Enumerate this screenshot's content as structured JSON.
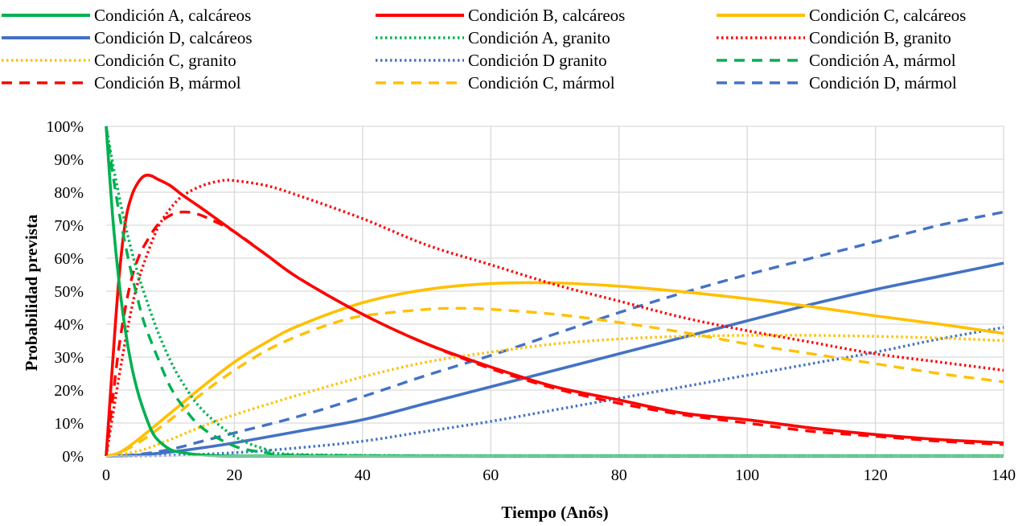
{
  "chart_data": {
    "type": "line",
    "xlabel": "Tiempo (Anõs)",
    "ylabel": "Probabilidad prevista",
    "xlim": [
      0,
      140
    ],
    "ylim": [
      0,
      100
    ],
    "x_ticks": [
      "0",
      "20",
      "40",
      "60",
      "80",
      "100",
      "120",
      "140"
    ],
    "y_ticks": [
      "0%",
      "10%",
      "20%",
      "30%",
      "40%",
      "50%",
      "60%",
      "70%",
      "80%",
      "90%",
      "100%"
    ],
    "grid": true,
    "legend_position": "top",
    "colors": {
      "A": "#00b050",
      "B": "#ff0000",
      "C": "#ffc000",
      "D": "#4472c4"
    },
    "series": [
      {
        "name": "Condición A, calcáreos",
        "color": "#00b050",
        "dash": "solid",
        "x": [
          0,
          1,
          2,
          3,
          4,
          5,
          6,
          7,
          8,
          10,
          12,
          15,
          20,
          30,
          60,
          100,
          140
        ],
        "y": [
          100,
          73,
          53,
          38,
          27,
          19,
          13,
          8,
          5,
          2,
          1,
          0.3,
          0,
          0,
          0,
          0,
          0
        ]
      },
      {
        "name": "Condición B, calcáreos",
        "color": "#ff0000",
        "dash": "solid",
        "x": [
          0,
          1,
          2,
          3,
          4,
          5,
          6,
          7,
          8,
          10,
          12,
          15,
          20,
          25,
          30,
          40,
          50,
          60,
          70,
          80,
          90,
          100,
          110,
          120,
          130,
          140
        ],
        "y": [
          0,
          28,
          54,
          71,
          79,
          83,
          85,
          85,
          84,
          82,
          79,
          75,
          68,
          61,
          54,
          43,
          34,
          27,
          21,
          17,
          13,
          11,
          8.5,
          6.5,
          5,
          4
        ]
      },
      {
        "name": "Condición C, calcáreos",
        "color": "#ffc000",
        "dash": "solid",
        "x": [
          0,
          2,
          5,
          10,
          15,
          20,
          25,
          30,
          40,
          50,
          60,
          70,
          80,
          90,
          100,
          110,
          120,
          130,
          140
        ],
        "y": [
          0,
          1,
          5,
          13,
          21,
          28.5,
          34.5,
          39.5,
          46.5,
          50.5,
          52.3,
          52.5,
          51.5,
          49.8,
          47.7,
          45.3,
          42.5,
          40,
          37.2
        ]
      },
      {
        "name": "Condición D, calcáreos",
        "color": "#4472c4",
        "dash": "solid",
        "x": [
          0,
          5,
          10,
          15,
          20,
          30,
          40,
          50,
          60,
          70,
          80,
          90,
          100,
          110,
          120,
          130,
          140
        ],
        "y": [
          0,
          0.3,
          1.2,
          2.5,
          4,
          7.5,
          11,
          16,
          21,
          26,
          31,
          36,
          41,
          46,
          50.5,
          54.5,
          58.5
        ]
      },
      {
        "name": "Condición A, granito",
        "color": "#00b050",
        "dash": "dot",
        "x": [
          0,
          1,
          2,
          3,
          4,
          5,
          6,
          8,
          10,
          12,
          15,
          20,
          25,
          30,
          60,
          100,
          140
        ],
        "y": [
          100,
          89,
          79,
          70,
          62,
          55,
          49,
          38,
          29,
          22,
          14,
          6,
          2,
          0.5,
          0,
          0,
          0
        ]
      },
      {
        "name": "Condición B, granito",
        "color": "#ff0000",
        "dash": "dot",
        "x": [
          0,
          1,
          2,
          3,
          4,
          5,
          6,
          8,
          10,
          12,
          15,
          18,
          20,
          25,
          30,
          40,
          50,
          60,
          70,
          80,
          90,
          100,
          110,
          120,
          130,
          140
        ],
        "y": [
          0,
          12,
          24,
          35,
          45,
          53,
          59,
          69,
          75,
          79,
          82,
          83.5,
          83.5,
          82,
          79,
          72,
          64,
          58,
          52,
          47,
          42,
          38,
          34.5,
          31,
          28.5,
          26
        ]
      },
      {
        "name": "Condición C, granito",
        "color": "#ffc000",
        "dash": "dot",
        "x": [
          0,
          5,
          10,
          15,
          20,
          30,
          40,
          50,
          60,
          70,
          80,
          90,
          100,
          110,
          120,
          130,
          140
        ],
        "y": [
          0,
          1.5,
          5,
          9,
          12.5,
          18.5,
          24,
          28.5,
          31.5,
          34,
          35.5,
          36.3,
          36.6,
          36.6,
          36.3,
          35.8,
          35
        ]
      },
      {
        "name": "Condición D granito",
        "color": "#4472c4",
        "dash": "dot",
        "x": [
          0,
          10,
          20,
          30,
          40,
          50,
          60,
          70,
          80,
          90,
          100,
          110,
          120,
          130,
          140
        ],
        "y": [
          0,
          0.2,
          1,
          2.5,
          4.5,
          7.5,
          10.5,
          14,
          17.5,
          21,
          24.5,
          28,
          31.5,
          35.5,
          39
        ]
      },
      {
        "name": "Condición A, mármol",
        "color": "#00b050",
        "dash": "dash",
        "x": [
          0,
          1,
          2,
          3,
          4,
          5,
          6,
          8,
          10,
          12,
          15,
          20,
          25,
          30,
          60,
          100,
          140
        ],
        "y": [
          100,
          86,
          74,
          64,
          55,
          47,
          40,
          30,
          21,
          15,
          8.5,
          3,
          1,
          0.3,
          0,
          0,
          0
        ]
      },
      {
        "name": "Condición B, mármol",
        "color": "#ff0000",
        "dash": "dash",
        "x": [
          0,
          1,
          2,
          3,
          4,
          5,
          6,
          8,
          10,
          12,
          14,
          16,
          20,
          25,
          30,
          40,
          50,
          60,
          70,
          80,
          90,
          100,
          110,
          120,
          130,
          140
        ],
        "y": [
          0,
          17,
          33,
          45,
          54,
          60,
          64,
          70,
          73,
          74,
          73.5,
          72,
          68,
          61,
          54,
          43,
          34,
          26.5,
          20.5,
          16,
          12.5,
          10,
          7.5,
          6,
          4.5,
          3.5
        ]
      },
      {
        "name": "Condición C, mármol",
        "color": "#ffc000",
        "dash": "dash",
        "x": [
          0,
          2,
          5,
          10,
          15,
          20,
          25,
          30,
          35,
          40,
          50,
          55,
          60,
          70,
          80,
          90,
          100,
          110,
          120,
          130,
          140
        ],
        "y": [
          0,
          1,
          4,
          11,
          19,
          26,
          32,
          36.5,
          40,
          42.5,
          44.5,
          44.8,
          44.5,
          43,
          40.5,
          37.5,
          34,
          31,
          28,
          25,
          22.5
        ]
      },
      {
        "name": "Condición D, mármol",
        "color": "#4472c4",
        "dash": "dash",
        "x": [
          0,
          5,
          10,
          15,
          20,
          30,
          40,
          50,
          60,
          70,
          80,
          90,
          100,
          110,
          120,
          130,
          140
        ],
        "y": [
          0,
          0.5,
          2,
          4.5,
          7,
          12,
          18,
          24.5,
          30.5,
          37,
          43.5,
          49.5,
          55,
          60,
          65,
          70,
          74
        ]
      }
    ]
  }
}
